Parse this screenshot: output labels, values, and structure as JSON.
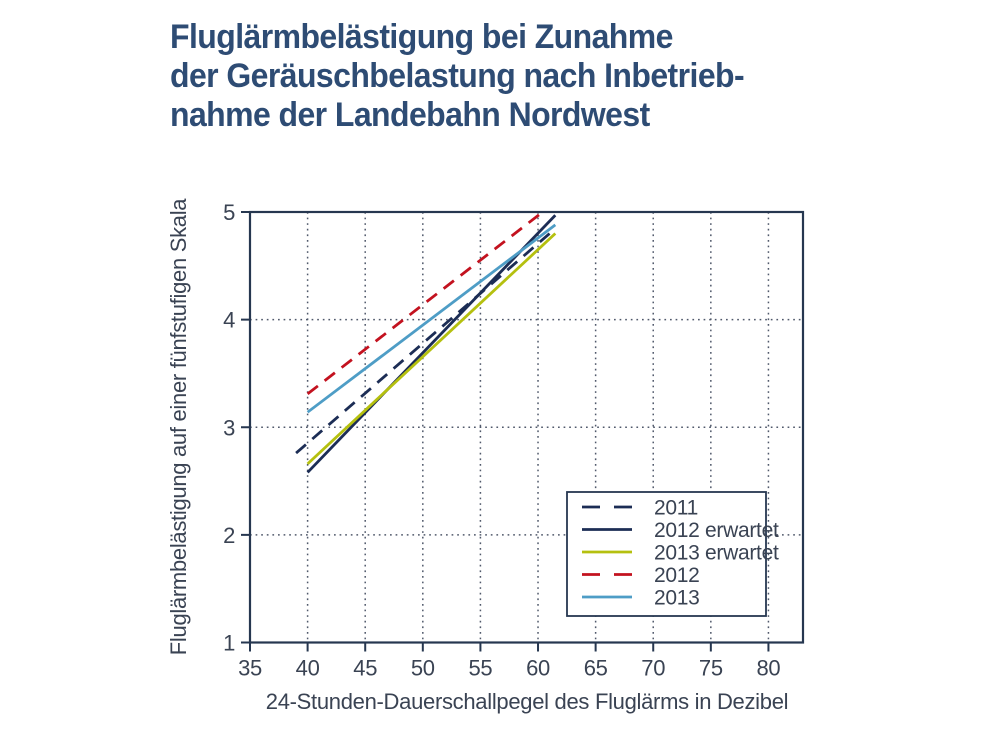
{
  "title": "Fluglärmbelästigung bei Zunahme\nder Geräuschbelastung nach Inbetrieb-\nnahme der Landebahn Nordwest",
  "colors": {
    "title": "#2e4c74",
    "axis": "#263750",
    "tick_text": "#3a4353",
    "grid": "#50596b",
    "background": "#ffffff",
    "legend_background": "#ffffff"
  },
  "chart_data": {
    "type": "line",
    "title": "Fluglärmbelästigung bei Zunahme der Geräuschbelastung nach Inbetriebnahme der Landebahn Nordwest",
    "x_axis": {
      "label": "24-Stunden-Dauerschallpegel des Fluglärms in Dezibel",
      "ticks": [
        35,
        40,
        45,
        50,
        55,
        60,
        65,
        70,
        75,
        80
      ],
      "range": [
        35,
        83
      ]
    },
    "y_axis": {
      "label": "Fluglärmbelästigung auf einer fünfstufigen Skala",
      "ticks": [
        1,
        2,
        3,
        4,
        5
      ],
      "range": [
        1,
        5
      ]
    },
    "grid": {
      "vertical_at": [
        40,
        45,
        50,
        55,
        60,
        65,
        70,
        75,
        80
      ],
      "horizontal_at": [
        2,
        3,
        4
      ],
      "style": "dotted"
    },
    "legend": {
      "position": "inside-bottom-right",
      "entries": [
        "2011",
        "2012 erwartet",
        "2013 erwartet",
        "2012",
        "2013"
      ]
    },
    "series": [
      {
        "name": "2011",
        "style": "dashed",
        "color": "#1c2d55",
        "points": [
          [
            39,
            2.76
          ],
          [
            61,
            4.8
          ]
        ]
      },
      {
        "name": "2012 erwartet",
        "style": "solid",
        "color": "#1c2d55",
        "points": [
          [
            40,
            2.58
          ],
          [
            61.5,
            4.97
          ]
        ]
      },
      {
        "name": "2013 erwartet",
        "style": "solid",
        "color": "#b5c00f",
        "points": [
          [
            40,
            2.66
          ],
          [
            61.5,
            4.8
          ]
        ]
      },
      {
        "name": "2012",
        "style": "dashed",
        "color": "#c3121f",
        "points": [
          [
            40,
            3.31
          ],
          [
            60.4,
            5.0
          ]
        ]
      },
      {
        "name": "2013",
        "style": "solid",
        "color": "#4e9dc6",
        "points": [
          [
            40,
            3.14
          ],
          [
            61.5,
            4.88
          ]
        ]
      }
    ]
  }
}
